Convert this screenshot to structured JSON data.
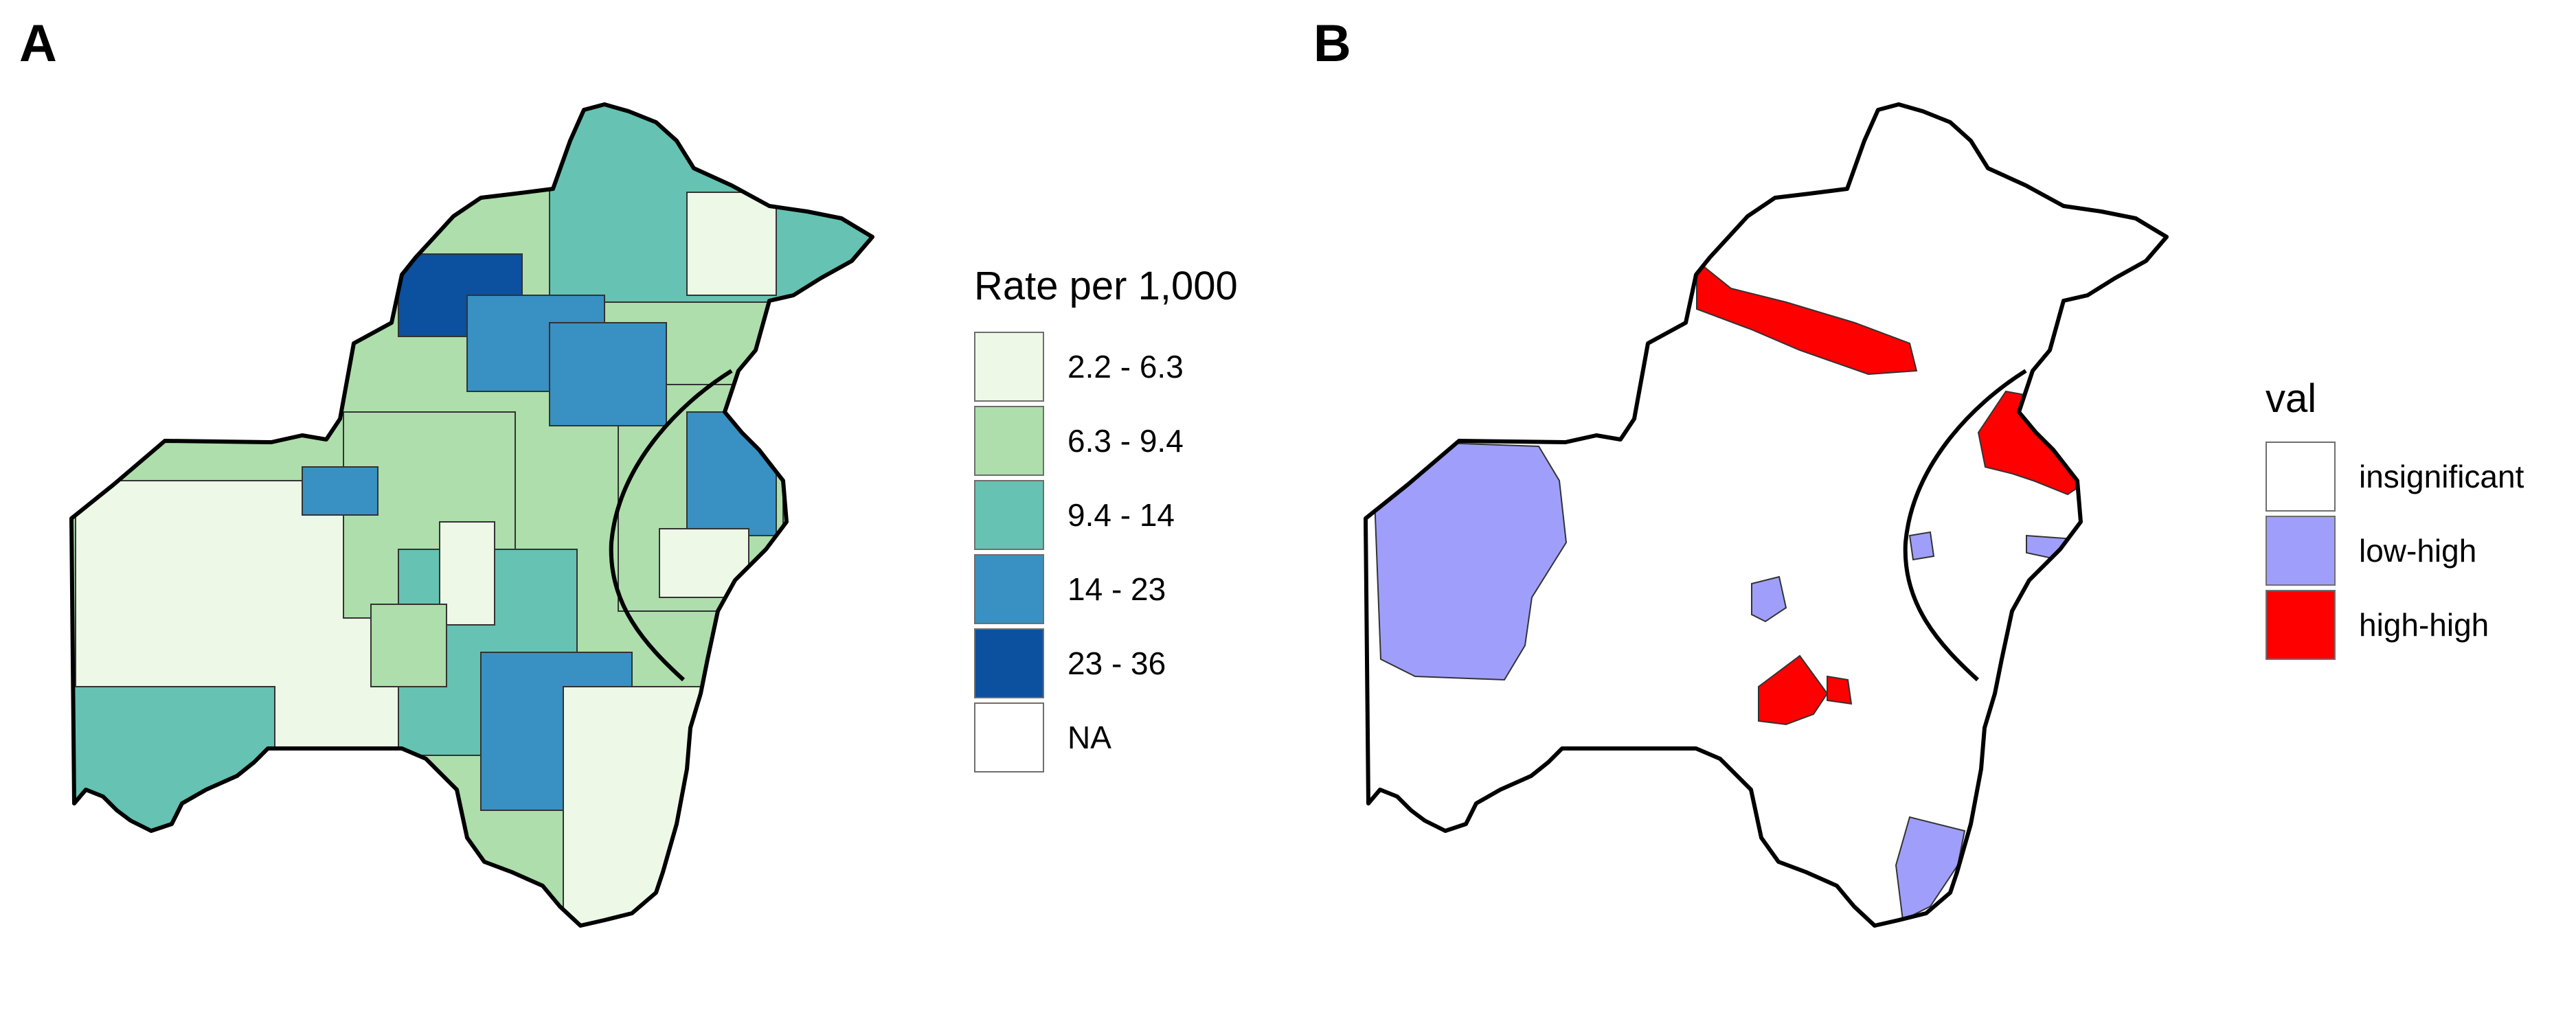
{
  "panels": [
    {
      "label": "A",
      "legend": {
        "title": "Rate per 1,000",
        "items": [
          {
            "label": "2.2 - 6.3",
            "color": "#edf8e6"
          },
          {
            "label": "6.3 - 9.4",
            "color": "#addeab"
          },
          {
            "label": "9.4 - 14",
            "color": "#66c2b2"
          },
          {
            "label": "14 - 23",
            "color": "#3891c2"
          },
          {
            "label": "23 - 36",
            "color": "#0c50a0"
          },
          {
            "label": "NA",
            "color": "#ffffff"
          }
        ]
      }
    },
    {
      "label": "B",
      "legend": {
        "title": "val",
        "items": [
          {
            "label": "insignificant",
            "color": "#ffffff"
          },
          {
            "label": "low-high",
            "color": "#9f9ffb"
          },
          {
            "label": "high-high",
            "color": "#ff0000"
          }
        ]
      }
    }
  ]
}
